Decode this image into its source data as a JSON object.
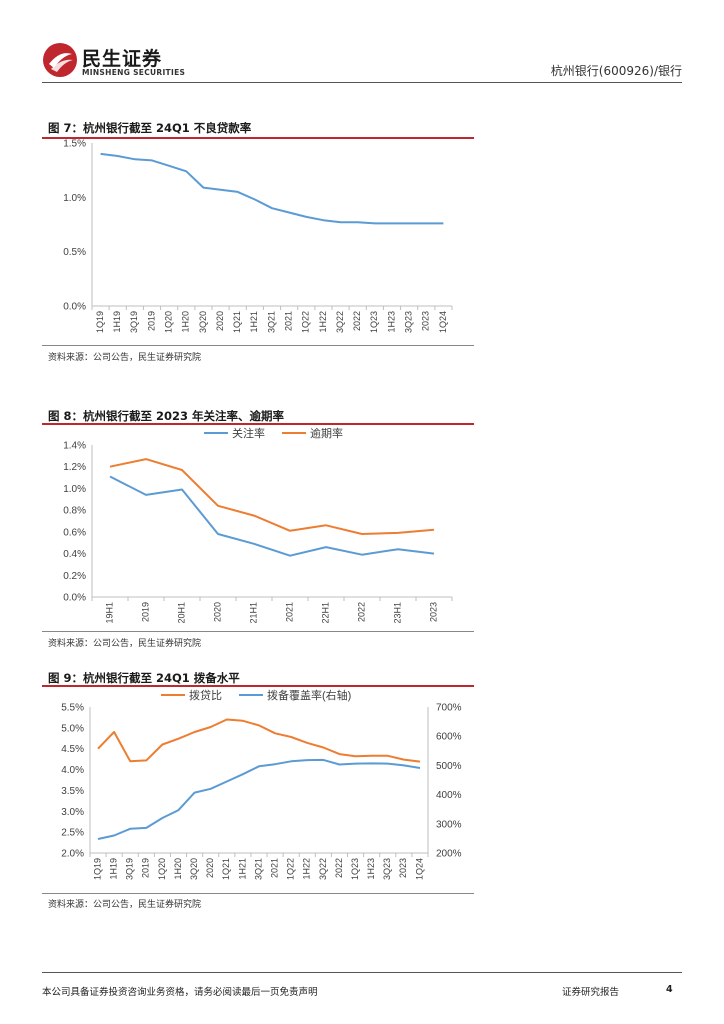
{
  "header": {
    "logo_cn": "民生证券",
    "logo_en": "MINSHENG SECURITIES",
    "right_text": "杭州银行(600926)/银行"
  },
  "footer": {
    "disclaimer": "本公司具备证券投资咨询业务资格，请务必阅读最后一页免责声明",
    "report_type": "证券研究报告",
    "page_number": "4"
  },
  "colors": {
    "blue": "#5b9bd5",
    "orange": "#ed7d31",
    "red_rule": "#c0262d"
  },
  "figures": [
    {
      "title": "图 7：杭州银行截至 24Q1 不良贷款率",
      "source": "资料来源：公司公告，民生证券研究院"
    },
    {
      "title": "图 8：杭州银行截至 2023 年关注率、逾期率",
      "source": "资料来源：公司公告，民生证券研究院"
    },
    {
      "title": "图 9：杭州银行截至 24Q1 拨备水平",
      "source": "资料来源：公司公告，民生证券研究院"
    }
  ],
  "chart_data": [
    {
      "type": "line",
      "title": "图 7：杭州银行截至 24Q1 不良贷款率",
      "categories": [
        "1Q19",
        "1H19",
        "3Q19",
        "2019",
        "1Q20",
        "1H20",
        "3Q20",
        "2020",
        "1Q21",
        "1H21",
        "3Q21",
        "2021",
        "1Q22",
        "1H22",
        "3Q22",
        "2022",
        "1Q23",
        "1H23",
        "3Q23",
        "2023",
        "1Q24"
      ],
      "series": [
        {
          "values": [
            1.4,
            1.38,
            1.35,
            1.34,
            1.29,
            1.24,
            1.09,
            1.07,
            1.05,
            0.98,
            0.9,
            0.86,
            0.82,
            0.79,
            0.77,
            0.77,
            0.76,
            0.76,
            0.76,
            0.76,
            0.76
          ],
          "color": "#5b9bd5"
        }
      ],
      "ylim": [
        0,
        1.5
      ],
      "yticks": [
        "0.0%",
        "0.5%",
        "1.0%",
        "1.5%"
      ],
      "ytick_values": [
        0,
        0.5,
        1.0,
        1.5
      ],
      "grid": false
    },
    {
      "type": "line",
      "title": "图 8：杭州银行截至 2023 年关注率、逾期率",
      "categories": [
        "19H1",
        "2019",
        "20H1",
        "2020",
        "21H1",
        "2021",
        "22H1",
        "2022",
        "23H1",
        "2023"
      ],
      "series": [
        {
          "name": "关注率",
          "values": [
            1.11,
            0.94,
            0.99,
            0.58,
            0.49,
            0.38,
            0.46,
            0.39,
            0.44,
            0.4
          ],
          "color": "#5b9bd5"
        },
        {
          "name": "逾期率",
          "values": [
            1.2,
            1.27,
            1.17,
            0.84,
            0.75,
            0.61,
            0.66,
            0.58,
            0.59,
            0.62
          ],
          "color": "#ed7d31"
        }
      ],
      "ylim": [
        0,
        1.4
      ],
      "yticks": [
        "0.0%",
        "0.2%",
        "0.4%",
        "0.6%",
        "0.8%",
        "1.0%",
        "1.2%",
        "1.4%"
      ],
      "ytick_values": [
        0,
        0.2,
        0.4,
        0.6,
        0.8,
        1.0,
        1.2,
        1.4
      ],
      "legend": "top",
      "grid": false
    },
    {
      "type": "line",
      "title": "图 9：杭州银行截至 24Q1 拨备水平",
      "categories": [
        "1Q19",
        "1H19",
        "3Q19",
        "2019",
        "1Q20",
        "1H20",
        "3Q20",
        "2020",
        "1Q21",
        "1H21",
        "3Q21",
        "2021",
        "1Q22",
        "1H22",
        "3Q22",
        "2022",
        "1Q23",
        "1H23",
        "3Q23",
        "2023",
        "1Q24"
      ],
      "series": [
        {
          "name": "拨贷比",
          "axis": "left",
          "values": [
            4.5,
            4.9,
            4.2,
            4.22,
            4.6,
            4.74,
            4.9,
            5.02,
            5.2,
            5.17,
            5.06,
            4.87,
            4.78,
            4.64,
            4.53,
            4.37,
            4.32,
            4.33,
            4.33,
            4.24,
            4.19
          ],
          "color": "#ed7d31"
        },
        {
          "name": "拨备覆盖率(右轴)",
          "axis": "right",
          "values": [
            248,
            260,
            283,
            286,
            320,
            347,
            407,
            420,
            445,
            470,
            497,
            504,
            514,
            518,
            519,
            503,
            506,
            507,
            506,
            500,
            491
          ],
          "color": "#5b9bd5"
        }
      ],
      "ylim": [
        2.0,
        5.5
      ],
      "yticks": [
        "2.0%",
        "2.5%",
        "3.0%",
        "3.5%",
        "4.0%",
        "4.5%",
        "5.0%",
        "5.5%"
      ],
      "ytick_values": [
        2.0,
        2.5,
        3.0,
        3.5,
        4.0,
        4.5,
        5.0,
        5.5
      ],
      "y2lim": [
        200,
        700
      ],
      "y2ticks": [
        "200%",
        "300%",
        "400%",
        "500%",
        "600%",
        "700%"
      ],
      "y2tick_values": [
        200,
        300,
        400,
        500,
        600,
        700
      ],
      "legend": "top",
      "grid": false
    }
  ]
}
